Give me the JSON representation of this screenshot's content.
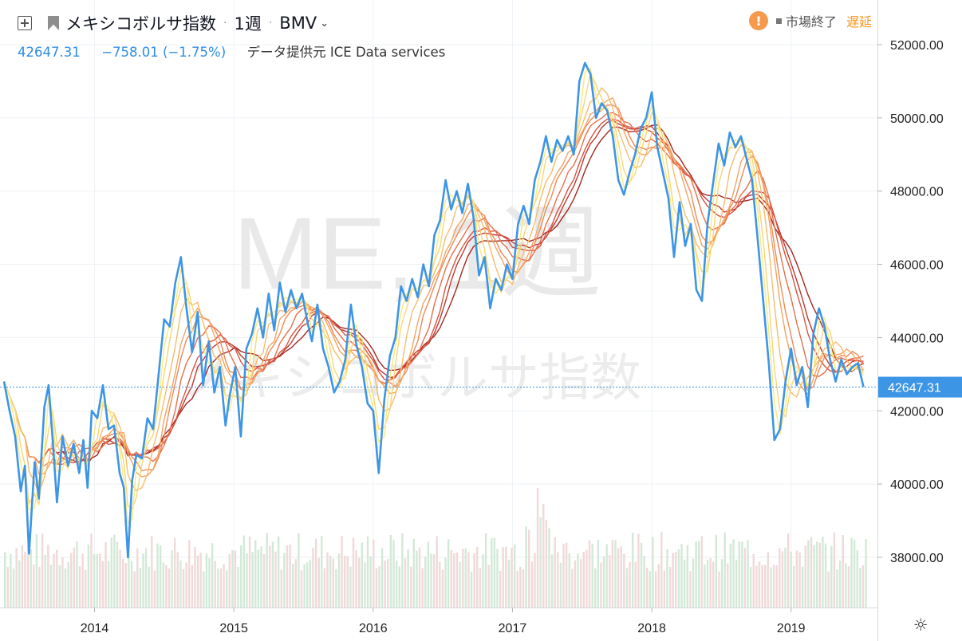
{
  "header": {
    "symbol_name": "メキシコボルサ指数",
    "interval": "1週",
    "exchange": "BMV",
    "last": "42647.31",
    "change": "−758.01 (−1.75%)",
    "data_source": "データ提供元 ICE Data services",
    "status_closed": "市場終了",
    "status_delayed": "遅延",
    "icons": [
      "plus-box-icon",
      "flag-icon",
      "chevron-down-icon",
      "warning-icon",
      "gear-icon"
    ]
  },
  "watermark": {
    "line1": "ME, 1週",
    "line2": "メキシコボルサ指数"
  },
  "chart_data": {
    "type": "line",
    "title": "メキシコボルサ指数",
    "x_ticks": [
      "2014",
      "2015",
      "2016",
      "2017",
      "2018",
      "2019"
    ],
    "y_ticks": [
      "52000.00",
      "50000.00",
      "48000.00",
      "46000.00",
      "44000.00",
      "42000.00",
      "40000.00",
      "38000.00"
    ],
    "ylim": [
      36500,
      53000
    ],
    "xlim": [
      2013.35,
      2019.62
    ],
    "last_value_label": "42647.31",
    "last_value": 42647.31,
    "grid": true,
    "colors": {
      "price": "#3d95e6",
      "ribbon": [
        "#fbe97a",
        "#f9d676",
        "#f6bd6c",
        "#f3a462",
        "#ee8a57",
        "#e6704d",
        "#d75541",
        "#c03a33",
        "#a32a22"
      ],
      "volume_up": "#d3e9d7",
      "volume_down": "#f0d9d9"
    },
    "series": [
      {
        "name": "",
        "points": [
          [
            2013.35,
            42800
          ],
          [
            2013.39,
            42000
          ],
          [
            2013.43,
            41300
          ],
          [
            2013.47,
            39800
          ],
          [
            2013.5,
            40500
          ],
          [
            2013.53,
            38100
          ],
          [
            2013.57,
            40600
          ],
          [
            2013.6,
            39600
          ],
          [
            2013.64,
            42100
          ],
          [
            2013.67,
            42700
          ],
          [
            2013.7,
            41200
          ],
          [
            2013.73,
            39500
          ],
          [
            2013.77,
            41300
          ],
          [
            2013.81,
            40500
          ],
          [
            2013.85,
            41100
          ],
          [
            2013.89,
            40300
          ],
          [
            2013.92,
            41200
          ],
          [
            2013.95,
            39900
          ],
          [
            2013.98,
            42000
          ],
          [
            2014.02,
            41800
          ],
          [
            2014.06,
            42700
          ],
          [
            2014.1,
            41500
          ],
          [
            2014.14,
            41600
          ],
          [
            2014.18,
            40300
          ],
          [
            2014.21,
            39900
          ],
          [
            2014.24,
            38000
          ],
          [
            2014.27,
            40100
          ],
          [
            2014.3,
            40800
          ],
          [
            2014.34,
            40700
          ],
          [
            2014.38,
            41800
          ],
          [
            2014.42,
            41500
          ],
          [
            2014.46,
            43000
          ],
          [
            2014.5,
            44500
          ],
          [
            2014.54,
            44300
          ],
          [
            2014.58,
            45500
          ],
          [
            2014.62,
            46200
          ],
          [
            2014.66,
            44800
          ],
          [
            2014.7,
            43600
          ],
          [
            2014.74,
            44700
          ],
          [
            2014.78,
            42700
          ],
          [
            2014.82,
            43900
          ],
          [
            2014.86,
            42500
          ],
          [
            2014.9,
            43200
          ],
          [
            2014.94,
            41600
          ],
          [
            2014.97,
            42400
          ],
          [
            2015.01,
            43200
          ],
          [
            2015.05,
            41300
          ],
          [
            2015.09,
            43700
          ],
          [
            2015.13,
            44100
          ],
          [
            2015.17,
            44800
          ],
          [
            2015.21,
            44000
          ],
          [
            2015.25,
            45200
          ],
          [
            2015.29,
            44200
          ],
          [
            2015.33,
            45500
          ],
          [
            2015.37,
            44700
          ],
          [
            2015.41,
            45300
          ],
          [
            2015.45,
            44800
          ],
          [
            2015.49,
            45200
          ],
          [
            2015.53,
            44400
          ],
          [
            2015.56,
            43900
          ],
          [
            2015.6,
            44900
          ],
          [
            2015.64,
            43700
          ],
          [
            2015.68,
            43200
          ],
          [
            2015.72,
            42500
          ],
          [
            2015.76,
            42800
          ],
          [
            2015.8,
            43400
          ],
          [
            2015.84,
            44900
          ],
          [
            2015.88,
            43800
          ],
          [
            2015.92,
            43200
          ],
          [
            2015.96,
            42200
          ],
          [
            2016.0,
            42000
          ],
          [
            2016.04,
            40300
          ],
          [
            2016.08,
            42300
          ],
          [
            2016.12,
            43500
          ],
          [
            2016.16,
            44000
          ],
          [
            2016.2,
            45400
          ],
          [
            2016.24,
            45000
          ],
          [
            2016.28,
            45600
          ],
          [
            2016.32,
            45100
          ],
          [
            2016.36,
            46000
          ],
          [
            2016.4,
            45400
          ],
          [
            2016.44,
            46800
          ],
          [
            2016.48,
            47200
          ],
          [
            2016.52,
            48300
          ],
          [
            2016.56,
            47500
          ],
          [
            2016.6,
            48000
          ],
          [
            2016.64,
            47400
          ],
          [
            2016.68,
            48200
          ],
          [
            2016.72,
            47300
          ],
          [
            2016.76,
            45700
          ],
          [
            2016.8,
            46200
          ],
          [
            2016.84,
            44800
          ],
          [
            2016.88,
            45600
          ],
          [
            2016.92,
            45300
          ],
          [
            2016.96,
            46000
          ],
          [
            2017.0,
            45600
          ],
          [
            2017.04,
            47100
          ],
          [
            2017.08,
            47600
          ],
          [
            2017.12,
            47100
          ],
          [
            2017.16,
            48300
          ],
          [
            2017.2,
            48800
          ],
          [
            2017.24,
            49500
          ],
          [
            2017.28,
            48800
          ],
          [
            2017.32,
            49400
          ],
          [
            2017.36,
            49100
          ],
          [
            2017.4,
            49500
          ],
          [
            2017.44,
            49000
          ],
          [
            2017.48,
            51000
          ],
          [
            2017.52,
            51500
          ],
          [
            2017.56,
            51200
          ],
          [
            2017.6,
            50000
          ],
          [
            2017.64,
            50400
          ],
          [
            2017.68,
            50200
          ],
          [
            2017.72,
            49500
          ],
          [
            2017.76,
            48300
          ],
          [
            2017.8,
            47900
          ],
          [
            2017.84,
            48500
          ],
          [
            2017.88,
            49000
          ],
          [
            2017.92,
            49700
          ],
          [
            2017.96,
            50000
          ],
          [
            2018.0,
            50700
          ],
          [
            2018.04,
            49200
          ],
          [
            2018.08,
            48500
          ],
          [
            2018.12,
            47800
          ],
          [
            2018.16,
            46200
          ],
          [
            2018.2,
            47700
          ],
          [
            2018.24,
            46500
          ],
          [
            2018.28,
            47100
          ],
          [
            2018.32,
            45300
          ],
          [
            2018.36,
            45000
          ],
          [
            2018.4,
            47100
          ],
          [
            2018.44,
            48200
          ],
          [
            2018.48,
            49300
          ],
          [
            2018.52,
            48700
          ],
          [
            2018.56,
            49600
          ],
          [
            2018.6,
            49200
          ],
          [
            2018.64,
            49500
          ],
          [
            2018.68,
            48900
          ],
          [
            2018.72,
            48300
          ],
          [
            2018.76,
            46700
          ],
          [
            2018.8,
            45000
          ],
          [
            2018.84,
            43300
          ],
          [
            2018.88,
            41200
          ],
          [
            2018.92,
            41500
          ],
          [
            2018.96,
            42800
          ],
          [
            2019.0,
            43700
          ],
          [
            2019.04,
            42700
          ],
          [
            2019.08,
            43200
          ],
          [
            2019.12,
            42100
          ],
          [
            2019.16,
            44100
          ],
          [
            2019.2,
            44800
          ],
          [
            2019.24,
            44300
          ],
          [
            2019.28,
            43400
          ],
          [
            2019.32,
            42800
          ],
          [
            2019.36,
            43400
          ],
          [
            2019.4,
            43000
          ],
          [
            2019.44,
            43200
          ],
          [
            2019.48,
            43300
          ],
          [
            2019.52,
            42647.31
          ]
        ]
      }
    ],
    "ribbon_periods": [
      5,
      10,
      15,
      20,
      25,
      30,
      35,
      40,
      45
    ]
  }
}
